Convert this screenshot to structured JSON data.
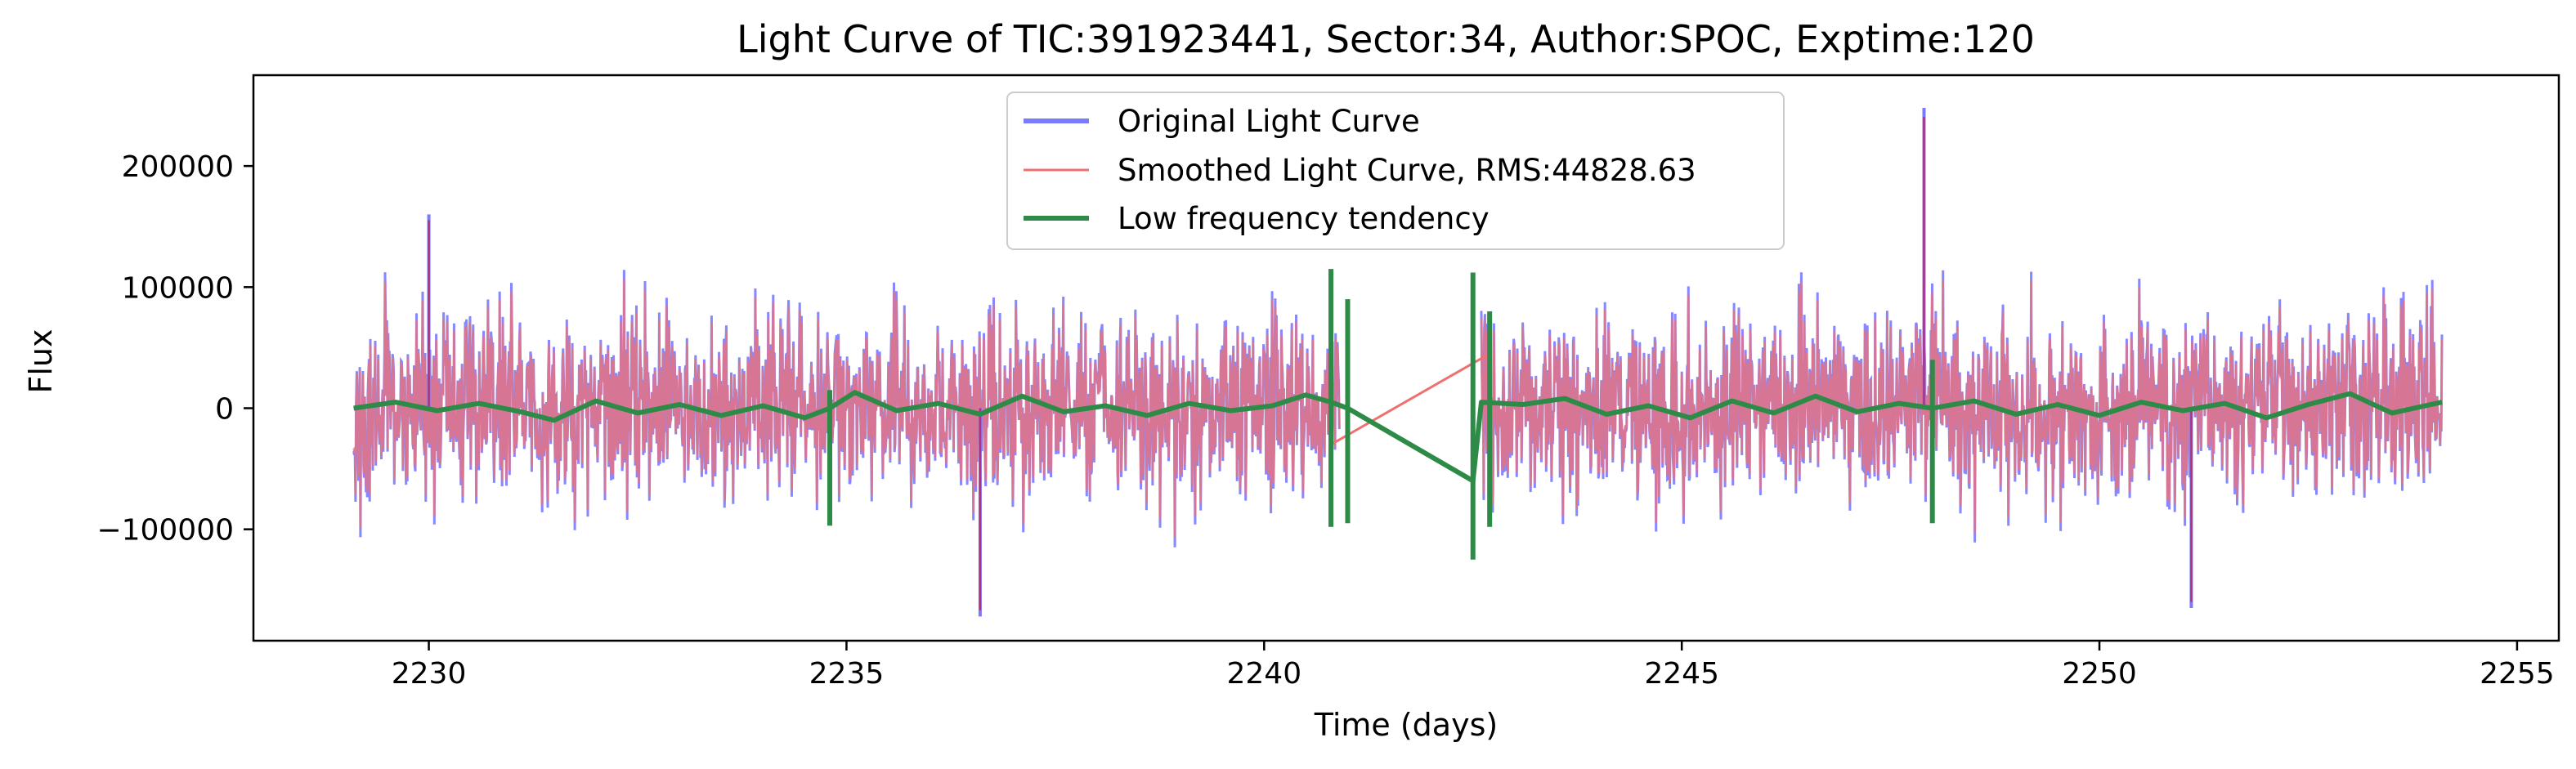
{
  "chart_data": {
    "type": "line",
    "title": "Light Curve of TIC:391923441, Sector:34, Author:SPOC, Exptime:120",
    "xlabel": "Time (days)",
    "ylabel": "Flux",
    "xlim": [
      2227.9,
      2255.5
    ],
    "ylim": [
      -192000,
      275000
    ],
    "x_ticks": [
      2230,
      2235,
      2240,
      2245,
      2250,
      2255
    ],
    "x_tick_labels": [
      "2230",
      "2235",
      "2240",
      "2245",
      "2250",
      "2255"
    ],
    "y_ticks": [
      -100000,
      0,
      100000,
      200000
    ],
    "y_tick_labels": [
      "−100000",
      "0",
      "100000",
      "200000"
    ],
    "grid": false,
    "legend_position": "top-center",
    "series": [
      {
        "name": "Original Light Curve",
        "color": "#7a7aff",
        "segments": [
          [
            2229.1,
            2240.9
          ],
          [
            2242.6,
            2254.1
          ]
        ],
        "typical_range": [
          -100000,
          100000
        ],
        "extremes": [
          [
            2230.0,
            160000
          ],
          [
            2236.6,
            -172000
          ],
          [
            2247.9,
            248000
          ],
          [
            2251.1,
            -165000
          ]
        ]
      },
      {
        "name": "Smoothed Light Curve, RMS:44828.63",
        "color": "#f07070",
        "segments": [
          [
            2229.1,
            2240.9
          ],
          [
            2242.6,
            2254.1
          ]
        ],
        "gap_line": [
          [
            2240.8,
            -30000
          ],
          [
            2242.7,
            45000
          ]
        ]
      },
      {
        "name": "Low frequency tendency",
        "color": "#2e8b47",
        "typical_range": [
          -15000,
          15000
        ],
        "points": [
          [
            2229.1,
            0
          ],
          [
            2229.6,
            5000
          ],
          [
            2230.1,
            -2000
          ],
          [
            2230.6,
            4000
          ],
          [
            2231.1,
            -3000
          ],
          [
            2231.5,
            -10000
          ],
          [
            2232.0,
            6000
          ],
          [
            2232.5,
            -4000
          ],
          [
            2233.0,
            3000
          ],
          [
            2233.5,
            -6000
          ],
          [
            2234.0,
            2000
          ],
          [
            2234.5,
            -8000
          ],
          [
            2234.8,
            0
          ],
          [
            2235.1,
            13000
          ],
          [
            2235.6,
            -2000
          ],
          [
            2236.1,
            4000
          ],
          [
            2236.6,
            -5000
          ],
          [
            2237.1,
            10000
          ],
          [
            2237.6,
            -3000
          ],
          [
            2238.1,
            2000
          ],
          [
            2238.6,
            -6000
          ],
          [
            2239.1,
            4000
          ],
          [
            2239.6,
            -2000
          ],
          [
            2240.1,
            2000
          ],
          [
            2240.5,
            11000
          ],
          [
            2240.8,
            5000
          ],
          [
            2241.0,
            0
          ],
          [
            2242.5,
            -60000
          ],
          [
            2242.6,
            5000
          ],
          [
            2243.1,
            3000
          ],
          [
            2243.6,
            8000
          ],
          [
            2244.1,
            -5000
          ],
          [
            2244.6,
            2000
          ],
          [
            2245.1,
            -8000
          ],
          [
            2245.6,
            6000
          ],
          [
            2246.1,
            -4000
          ],
          [
            2246.6,
            10000
          ],
          [
            2247.1,
            -3000
          ],
          [
            2247.6,
            4000
          ],
          [
            2248.0,
            0
          ],
          [
            2248.5,
            6000
          ],
          [
            2249.0,
            -5000
          ],
          [
            2249.5,
            3000
          ],
          [
            2250.0,
            -6000
          ],
          [
            2250.5,
            5000
          ],
          [
            2251.0,
            -2000
          ],
          [
            2251.5,
            4000
          ],
          [
            2252.0,
            -8000
          ],
          [
            2252.5,
            3000
          ],
          [
            2253.0,
            12000
          ],
          [
            2253.5,
            -4000
          ],
          [
            2254.1,
            5000
          ]
        ],
        "spikes": [
          [
            2234.8,
            15000,
            -97000
          ],
          [
            2240.8,
            115000,
            -98000
          ],
          [
            2241.0,
            90000,
            -95000
          ],
          [
            2242.5,
            112000,
            -125000
          ],
          [
            2242.7,
            80000,
            -98000
          ],
          [
            2248.0,
            40000,
            -95000
          ]
        ]
      }
    ]
  }
}
